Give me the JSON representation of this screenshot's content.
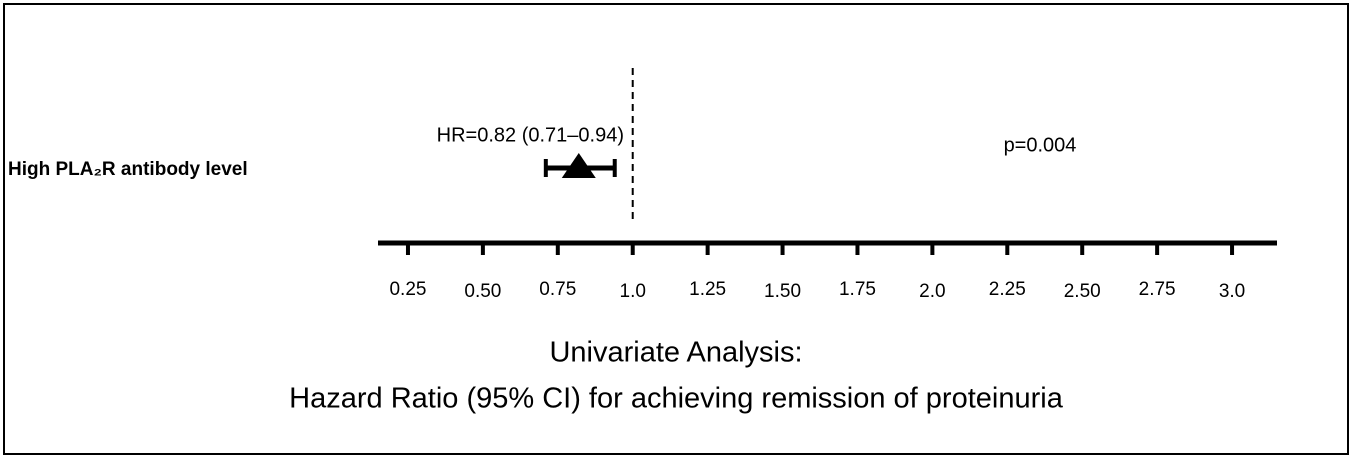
{
  "chart_data": {
    "type": "forest",
    "categories": [
      "High PLA₂R antibody level"
    ],
    "values": [
      0.82
    ],
    "ci_lower": [
      0.71
    ],
    "ci_upper": [
      0.94
    ],
    "value_labels": [
      "HR=0.82 (0.71–0.94)"
    ],
    "annotations": [
      "p=0.004"
    ],
    "reference_line": 1,
    "xlim": [
      0.15,
      3.15
    ],
    "xticks": [
      0.25,
      {
        "value": 0.5,
        "label": "0.50"
      },
      0.75,
      {
        "value": 1,
        "label": "1.0"
      },
      1.25,
      {
        "value": 1.5,
        "label": "1.50"
      },
      1.75,
      {
        "value": 2,
        "label": "2.0"
      },
      2.25,
      {
        "value": 2.5,
        "label": "2.50"
      },
      2.75,
      {
        "value": 3,
        "label": "3.0"
      }
    ],
    "xlabel": [
      "Univariate Analysis:",
      "Hazard Ratio (95% CI) for achieving remission of proteinuria"
    ],
    "color": "#000000"
  }
}
